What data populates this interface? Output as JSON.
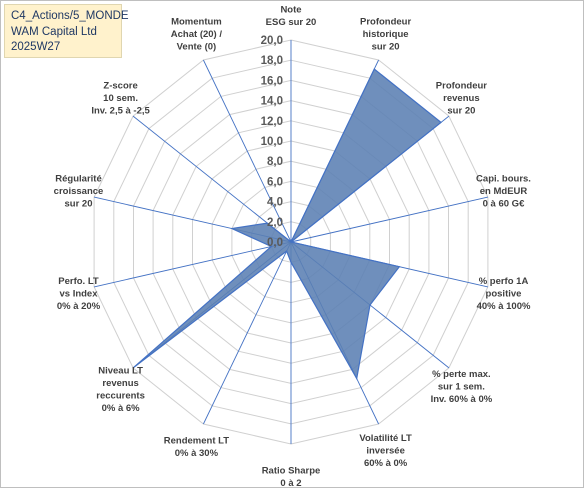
{
  "header": {
    "line1": "C4_Actions/5_MONDE",
    "line2": "WAM Capital Ltd",
    "line3": "2025W27"
  },
  "chart_data": {
    "type": "radar",
    "rmin": 0,
    "rmax": 20,
    "tick_step": 2,
    "tick_labels": [
      "0,0",
      "2,0",
      "4,0",
      "6,0",
      "8,0",
      "10,0",
      "12,0",
      "14,0",
      "16,0",
      "18,0",
      "20,0"
    ],
    "grid": true,
    "axes": [
      {
        "label": [
          "Note",
          "ESG sur 20"
        ]
      },
      {
        "label": [
          "Profondeur",
          "historique",
          "sur 20"
        ]
      },
      {
        "label": [
          "Profondeur",
          "revenus",
          "sur 20"
        ]
      },
      {
        "label": [
          "Capi. bours.",
          "en MdEUR",
          "0 à 60 G€"
        ]
      },
      {
        "label": [
          "% perfo 1A",
          "positive",
          "40% à 100%"
        ]
      },
      {
        "label": [
          "% perte max.",
          "sur 1 sem.",
          "Inv. 60% à 0%"
        ]
      },
      {
        "label": [
          "Volatilité LT",
          "inversée",
          "60% à 0%"
        ]
      },
      {
        "label": [
          "Ratio Sharpe",
          "0 à 2"
        ]
      },
      {
        "label": [
          "Rendement LT",
          "0% à 30%"
        ]
      },
      {
        "label": [
          "Niveau LT",
          "revenus",
          "reccurents",
          "0% à 6%"
        ]
      },
      {
        "label": [
          "Perfo. LT",
          "vs Index",
          "0% à 20%"
        ]
      },
      {
        "label": [
          "Régularité",
          "croissance",
          "sur 20"
        ]
      },
      {
        "label": [
          "Z-score",
          "10 sem.",
          "Inv. 2,5 à -2,5"
        ]
      },
      {
        "label": [
          "Momentum",
          "Achat (20) /",
          "Vente (0)"
        ]
      }
    ],
    "series": [
      {
        "values": [
          0.0,
          19.0,
          19.0,
          0.0,
          11.0,
          10.0,
          15.0,
          2.0,
          1.0,
          20.0,
          2.0,
          6.0,
          3.0,
          0.0
        ]
      }
    ],
    "colors": {
      "fill": "#5b7fb3",
      "stroke": "#4472c4",
      "grid": "#d0d0d0",
      "spoke": "#4472c4"
    }
  }
}
